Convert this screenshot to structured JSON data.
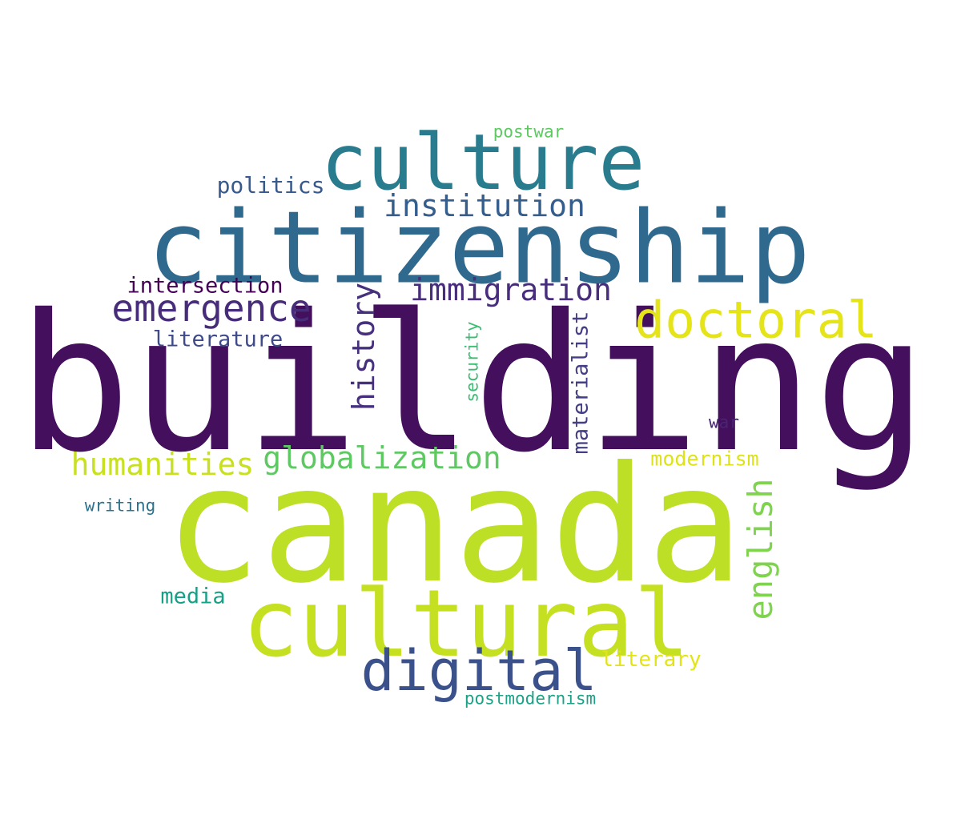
{
  "words": [
    {
      "key": "building",
      "text": "building",
      "color": "#440f5d"
    },
    {
      "key": "canada",
      "text": "canada",
      "color": "#bddf26"
    },
    {
      "key": "citizenship",
      "text": "citizenship",
      "color": "#30698e"
    },
    {
      "key": "culture",
      "text": "culture",
      "color": "#297b8e"
    },
    {
      "key": "cultural",
      "text": "cultural",
      "color": "#c5e021"
    },
    {
      "key": "digital",
      "text": "digital",
      "color": "#3b518b"
    },
    {
      "key": "doctoral",
      "text": "doctoral",
      "color": "#e5e419"
    },
    {
      "key": "emergence",
      "text": "emergence",
      "color": "#472c7a"
    },
    {
      "key": "immigration",
      "text": "immigration",
      "color": "#472d7b"
    },
    {
      "key": "institution",
      "text": "institution",
      "color": "#355e8d"
    },
    {
      "key": "history",
      "text": "history",
      "color": "#46307e"
    },
    {
      "key": "english",
      "text": "english",
      "color": "#7fd34e"
    },
    {
      "key": "globalization",
      "text": "globalization",
      "color": "#5ec962"
    },
    {
      "key": "humanities",
      "text": "humanities",
      "color": "#c8e020"
    },
    {
      "key": "politics",
      "text": "politics",
      "color": "#38598c"
    },
    {
      "key": "intersection",
      "text": "intersection",
      "color": "#440154"
    },
    {
      "key": "literature",
      "text": "literature",
      "color": "#3e4a89"
    },
    {
      "key": "materialist",
      "text": "materialist",
      "color": "#433e85"
    },
    {
      "key": "security",
      "text": "security",
      "color": "#3dbc74"
    },
    {
      "key": "modernism",
      "text": "modernism",
      "color": "#dde318"
    },
    {
      "key": "war",
      "text": "war",
      "color": "#482475"
    },
    {
      "key": "writing",
      "text": "writing",
      "color": "#2c728e"
    },
    {
      "key": "media",
      "text": "media",
      "color": "#16a086"
    },
    {
      "key": "literary",
      "text": "literary",
      "color": "#e2e418"
    },
    {
      "key": "postmodernism",
      "text": "postmodernism",
      "color": "#1fa187"
    },
    {
      "key": "postwar",
      "text": "postwar",
      "color": "#5ec962"
    }
  ]
}
